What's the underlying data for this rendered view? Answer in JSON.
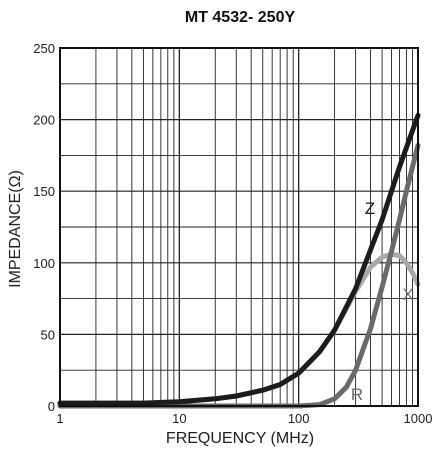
{
  "chart_data": {
    "type": "line",
    "title": "MT 4532-  250Y",
    "xlabel": "FREQUENCY (MHz)",
    "ylabel": "IMPEDANCE(Ω)",
    "x_scale": "log",
    "xlim": [
      1,
      1000
    ],
    "ylim": [
      0,
      250
    ],
    "x_ticks": [
      "1",
      "10",
      "100",
      "1000"
    ],
    "y_ticks": [
      "0",
      "50",
      "100",
      "150",
      "200",
      "250"
    ],
    "grid": true,
    "series": [
      {
        "name": "Z",
        "color": "#1c1c1c",
        "x": [
          1,
          5,
          10,
          20,
          30,
          50,
          70,
          100,
          150,
          200,
          300,
          500,
          700,
          1000
        ],
        "y": [
          2,
          2,
          3,
          5,
          7,
          11,
          15,
          23,
          38,
          53,
          82,
          130,
          167,
          203
        ]
      },
      {
        "name": "X",
        "color": "#a9a9a9",
        "x": [
          1,
          5,
          10,
          20,
          30,
          50,
          70,
          100,
          150,
          200,
          300,
          400,
          500,
          600,
          700,
          800,
          900,
          1000
        ],
        "y": [
          2,
          2,
          3,
          5,
          7,
          11,
          15,
          23,
          38,
          53,
          80,
          97,
          104,
          106,
          105,
          100,
          93,
          85
        ]
      },
      {
        "name": "R",
        "color": "#6a6a6a",
        "x": [
          1,
          10,
          100,
          150,
          200,
          250,
          300,
          400,
          500,
          600,
          700,
          800,
          900,
          1000
        ],
        "y": [
          0,
          0,
          0,
          1,
          5,
          13,
          25,
          54,
          83,
          108,
          130,
          150,
          167,
          182
        ]
      }
    ]
  }
}
